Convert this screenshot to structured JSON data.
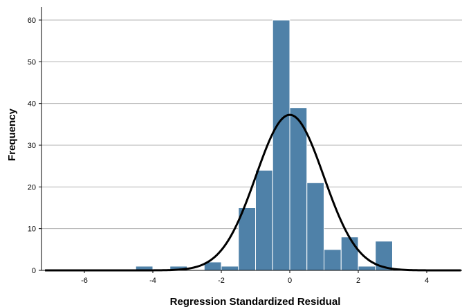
{
  "chart_data": {
    "type": "bar",
    "subtype": "histogram",
    "xlabel": "Regression Standardized Residual",
    "ylabel": "Frequency",
    "xlim": [
      -7.2,
      5.0
    ],
    "ylim": [
      0,
      62
    ],
    "x_ticks": [
      -6,
      -4,
      -2,
      0,
      2,
      4
    ],
    "y_ticks": [
      0,
      10,
      20,
      30,
      40,
      50,
      60
    ],
    "grid": "horizontal",
    "bar_color": "#4f81a8",
    "curve_color": "#000000",
    "bin_width": 0.5,
    "bins": [
      {
        "x0": -4.5,
        "x1": -4.0,
        "count": 1
      },
      {
        "x0": -3.5,
        "x1": -3.0,
        "count": 1
      },
      {
        "x0": -2.5,
        "x1": -2.0,
        "count": 2
      },
      {
        "x0": -2.0,
        "x1": -1.5,
        "count": 1
      },
      {
        "x0": -1.5,
        "x1": -1.0,
        "count": 15
      },
      {
        "x0": -1.0,
        "x1": -0.5,
        "count": 24
      },
      {
        "x0": -0.5,
        "x1": 0.0,
        "count": 60
      },
      {
        "x0": 0.0,
        "x1": 0.5,
        "count": 39
      },
      {
        "x0": 0.5,
        "x1": 1.0,
        "count": 21
      },
      {
        "x0": 1.0,
        "x1": 1.5,
        "count": 5
      },
      {
        "x0": 1.5,
        "x1": 2.0,
        "count": 8
      },
      {
        "x0": 2.0,
        "x1": 2.5,
        "count": 1
      },
      {
        "x0": 2.5,
        "x1": 3.0,
        "count": 7
      }
    ],
    "normal_curve": {
      "mean": 0,
      "std": 0.99,
      "n": 185
    }
  }
}
